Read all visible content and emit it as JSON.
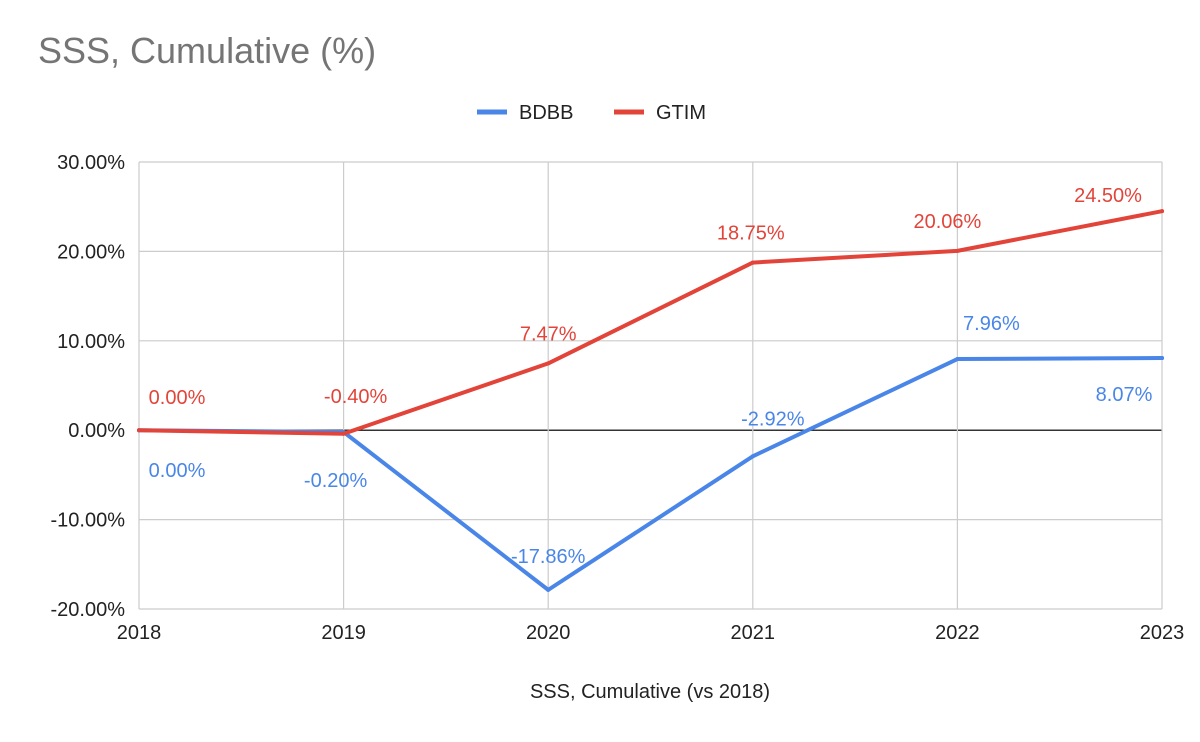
{
  "chart_data": {
    "type": "line",
    "title": "SSS, Cumulative (%)",
    "xlabel": "SSS, Cumulative (vs 2018)",
    "ylabel": "",
    "categories": [
      "2018",
      "2019",
      "2020",
      "2021",
      "2022",
      "2023"
    ],
    "ylim": [
      -20,
      30
    ],
    "yticks": [
      30,
      20,
      10,
      0,
      -10,
      -20
    ],
    "ytick_labels": [
      "30.00%",
      "20.00%",
      "10.00%",
      "0.00%",
      "-10.00%",
      "-20.00%"
    ],
    "grid": true,
    "legend_position": "top-center",
    "series": [
      {
        "name": "BDBB",
        "color": "#4a86e8",
        "values": [
          0.0,
          -0.2,
          -17.86,
          -2.92,
          7.96,
          8.07
        ],
        "labels": [
          "0.00%",
          "-0.20%",
          "-17.86%",
          "-2.92%",
          "7.96%",
          "8.07%"
        ]
      },
      {
        "name": "GTIM",
        "color": "#e2443a",
        "values": [
          0.0,
          -0.4,
          7.47,
          18.75,
          20.06,
          24.5
        ],
        "labels": [
          "0.00%",
          "-0.40%",
          "7.47%",
          "18.75%",
          "20.06%",
          "24.50%"
        ]
      }
    ]
  }
}
